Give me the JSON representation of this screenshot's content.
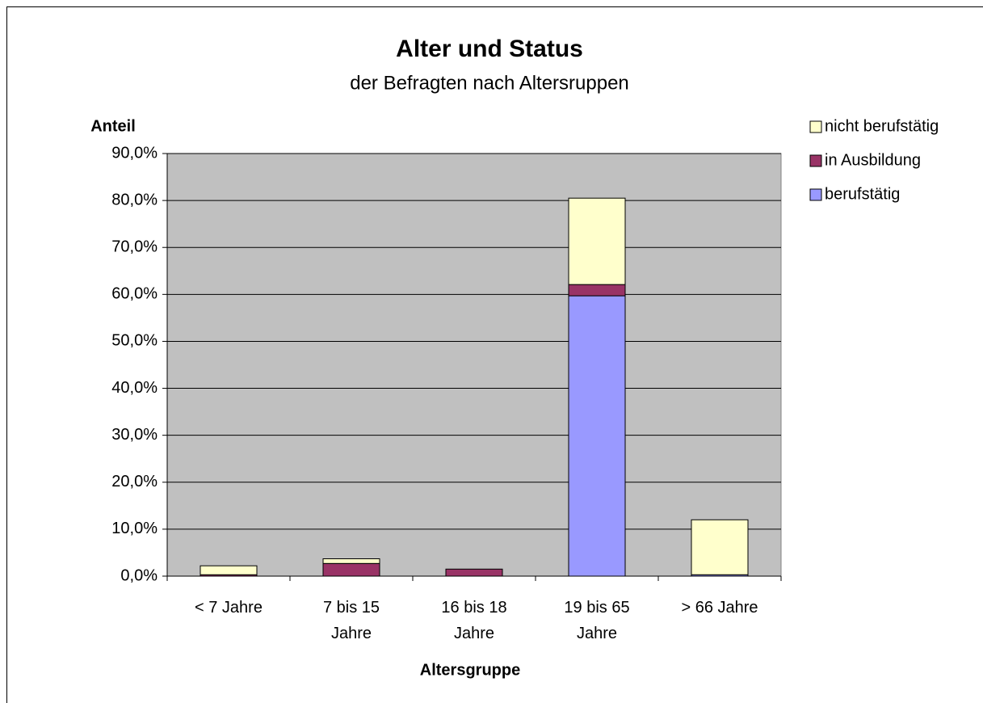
{
  "chart_data": {
    "type": "stacked_bar",
    "title": "Alter und Status",
    "subtitle": "der Befragten nach Altersruppen",
    "y_label": "Anteil",
    "x_label": "Altersgruppe",
    "categories": [
      "< 7 Jahre",
      "7 bis 15 Jahre",
      "16 bis 18 Jahre",
      "19 bis 65 Jahre",
      "> 66 Jahre"
    ],
    "series": [
      {
        "name": "berufstätig",
        "color": "#9999ff",
        "values": [
          0,
          0,
          0,
          59.7,
          0.3
        ]
      },
      {
        "name": "in Ausbildung",
        "color": "#993366",
        "values": [
          0.3,
          2.7,
          1.5,
          2.4,
          0
        ]
      },
      {
        "name": "nicht berufstätig",
        "color": "#ffffcc",
        "values": [
          1.9,
          1.0,
          0,
          18.4,
          11.7
        ]
      }
    ],
    "ylim": [
      0,
      90
    ],
    "yticks": [
      {
        "value": 0,
        "label": "0,0%"
      },
      {
        "value": 10,
        "label": "10,0%"
      },
      {
        "value": 20,
        "label": "20,0%"
      },
      {
        "value": 30,
        "label": "30,0%"
      },
      {
        "value": 40,
        "label": "40,0%"
      },
      {
        "value": 50,
        "label": "50,0%"
      },
      {
        "value": 60,
        "label": "60,0%"
      },
      {
        "value": 70,
        "label": "70,0%"
      },
      {
        "value": 80,
        "label": "80,0%"
      },
      {
        "value": 90,
        "label": "90,0%"
      }
    ],
    "grid": true,
    "legend": "right",
    "plot_background": "#c0c0c0"
  }
}
